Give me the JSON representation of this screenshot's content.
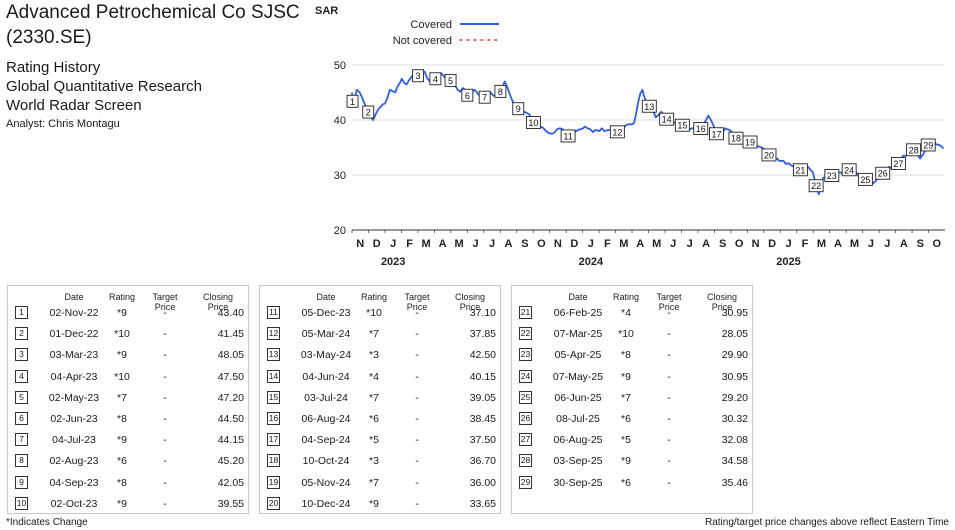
{
  "header": {
    "title_line1": "Advanced Petrochemical Co SJSC",
    "title_line2": "(2330.SE)",
    "sub1": "Rating History",
    "sub2": "Global Quantitative Research",
    "sub3": "World Radar Screen",
    "analyst": "Analyst: Chris Montagu"
  },
  "chart_data": {
    "type": "line",
    "ylabel": "SAR",
    "ylim": [
      20,
      52
    ],
    "yticks": [
      20,
      30,
      40,
      50
    ],
    "x_start": "2022-11-01",
    "x_end": "2025-10-31",
    "month_labels": [
      "N",
      "D",
      "J",
      "F",
      "M",
      "A",
      "M",
      "J",
      "J",
      "A",
      "S",
      "O",
      "N",
      "D",
      "J",
      "F",
      "M",
      "A",
      "M",
      "J",
      "J",
      "A",
      "S",
      "O",
      "N",
      "D",
      "J",
      "F",
      "M",
      "A",
      "M",
      "J",
      "J",
      "A",
      "S",
      "O"
    ],
    "year_labels": [
      "2023",
      "2024",
      "2025"
    ],
    "legend": [
      {
        "label": "Covered",
        "style": "solid",
        "color": "#2f5fe0"
      },
      {
        "label": "Not covered",
        "style": "dotted",
        "color": "#e03030"
      }
    ],
    "series": [
      {
        "name": "Covered",
        "color": "#2f5fe0",
        "points": [
          [
            "2022-11-01",
            45.0
          ],
          [
            "2022-11-02",
            43.4
          ],
          [
            "2022-11-10",
            45.5
          ],
          [
            "2022-11-20",
            44.0
          ],
          [
            "2022-12-01",
            41.45
          ],
          [
            "2022-12-10",
            40.0
          ],
          [
            "2022-12-20",
            42.0
          ],
          [
            "2023-01-01",
            43.0
          ],
          [
            "2023-01-10",
            45.5
          ],
          [
            "2023-01-20",
            45.0
          ],
          [
            "2023-02-01",
            47.5
          ],
          [
            "2023-02-10",
            46.5
          ],
          [
            "2023-02-20",
            48.0
          ],
          [
            "2023-03-03",
            48.05
          ],
          [
            "2023-03-15",
            48.8
          ],
          [
            "2023-03-25",
            47.0
          ],
          [
            "2023-04-04",
            47.5
          ],
          [
            "2023-04-15",
            48.5
          ],
          [
            "2023-04-25",
            47.2
          ],
          [
            "2023-05-02",
            47.2
          ],
          [
            "2023-05-15",
            45.5
          ],
          [
            "2023-05-25",
            45.8
          ],
          [
            "2023-06-02",
            44.5
          ],
          [
            "2023-06-15",
            45.5
          ],
          [
            "2023-06-25",
            44.3
          ],
          [
            "2023-07-04",
            44.15
          ],
          [
            "2023-07-15",
            45.0
          ],
          [
            "2023-07-25",
            44.5
          ],
          [
            "2023-08-02",
            45.2
          ],
          [
            "2023-08-10",
            47.0
          ],
          [
            "2023-08-20",
            44.5
          ],
          [
            "2023-09-04",
            42.05
          ],
          [
            "2023-09-15",
            41.5
          ],
          [
            "2023-09-25",
            41.0
          ],
          [
            "2023-10-02",
            39.55
          ],
          [
            "2023-10-15",
            38.8
          ],
          [
            "2023-10-25",
            38.0
          ],
          [
            "2023-11-05",
            37.5
          ],
          [
            "2023-11-20",
            38.5
          ],
          [
            "2023-12-05",
            37.1
          ],
          [
            "2023-12-20",
            38.0
          ],
          [
            "2024-01-05",
            38.8
          ],
          [
            "2024-01-20",
            37.8
          ],
          [
            "2024-02-05",
            38.5
          ],
          [
            "2024-02-20",
            38.2
          ],
          [
            "2024-03-05",
            37.85
          ],
          [
            "2024-03-20",
            39.0
          ],
          [
            "2024-04-05",
            39.5
          ],
          [
            "2024-04-12",
            43.0
          ],
          [
            "2024-04-20",
            45.5
          ],
          [
            "2024-05-03",
            42.5
          ],
          [
            "2024-05-15",
            40.5
          ],
          [
            "2024-05-25",
            41.5
          ],
          [
            "2024-06-04",
            40.15
          ],
          [
            "2024-06-20",
            39.5
          ],
          [
            "2024-07-03",
            39.05
          ],
          [
            "2024-07-20",
            38.5
          ],
          [
            "2024-08-06",
            38.45
          ],
          [
            "2024-08-20",
            40.8
          ],
          [
            "2024-09-04",
            37.5
          ],
          [
            "2024-09-20",
            38.5
          ],
          [
            "2024-10-10",
            36.7
          ],
          [
            "2024-10-25",
            37.0
          ],
          [
            "2024-11-05",
            36.0
          ],
          [
            "2024-11-20",
            35.2
          ],
          [
            "2024-12-10",
            33.65
          ],
          [
            "2024-12-25",
            33.0
          ],
          [
            "2025-01-10",
            32.0
          ],
          [
            "2025-01-25",
            31.5
          ],
          [
            "2025-02-06",
            30.95
          ],
          [
            "2025-02-20",
            31.5
          ],
          [
            "2025-03-01",
            30.5
          ],
          [
            "2025-03-07",
            28.05
          ],
          [
            "2025-03-12",
            26.5
          ],
          [
            "2025-03-20",
            29.5
          ],
          [
            "2025-04-05",
            29.9
          ],
          [
            "2025-04-20",
            30.5
          ],
          [
            "2025-05-07",
            30.95
          ],
          [
            "2025-05-20",
            30.5
          ],
          [
            "2025-06-06",
            29.2
          ],
          [
            "2025-06-20",
            28.5
          ],
          [
            "2025-07-08",
            30.32
          ],
          [
            "2025-07-20",
            31.5
          ],
          [
            "2025-08-06",
            32.08
          ],
          [
            "2025-08-20",
            33.5
          ],
          [
            "2025-09-03",
            34.58
          ],
          [
            "2025-09-15",
            33.0
          ],
          [
            "2025-09-30",
            35.46
          ],
          [
            "2025-10-10",
            36.2
          ],
          [
            "2025-10-20",
            35.5
          ],
          [
            "2025-10-28",
            34.8
          ]
        ]
      }
    ],
    "markers": [
      {
        "n": "1",
        "date": "2022-11-02",
        "price": 43.4
      },
      {
        "n": "2",
        "date": "2022-12-01",
        "price": 41.45
      },
      {
        "n": "3",
        "date": "2023-03-03",
        "price": 48.05
      },
      {
        "n": "4",
        "date": "2023-04-04",
        "price": 47.5
      },
      {
        "n": "5",
        "date": "2023-05-02",
        "price": 47.2
      },
      {
        "n": "6",
        "date": "2023-06-02",
        "price": 44.5
      },
      {
        "n": "7",
        "date": "2023-07-04",
        "price": 44.15
      },
      {
        "n": "8",
        "date": "2023-08-02",
        "price": 45.2
      },
      {
        "n": "9",
        "date": "2023-09-04",
        "price": 42.05
      },
      {
        "n": "10",
        "date": "2023-10-02",
        "price": 39.55
      },
      {
        "n": "11",
        "date": "2023-12-05",
        "price": 37.1
      },
      {
        "n": "12",
        "date": "2024-03-05",
        "price": 37.85
      },
      {
        "n": "13",
        "date": "2024-05-03",
        "price": 42.5
      },
      {
        "n": "14",
        "date": "2024-06-04",
        "price": 40.15
      },
      {
        "n": "15",
        "date": "2024-07-03",
        "price": 39.05
      },
      {
        "n": "16",
        "date": "2024-08-06",
        "price": 38.45
      },
      {
        "n": "17",
        "date": "2024-09-04",
        "price": 37.5
      },
      {
        "n": "18",
        "date": "2024-10-10",
        "price": 36.7
      },
      {
        "n": "19",
        "date": "2024-11-05",
        "price": 36.0
      },
      {
        "n": "20",
        "date": "2024-12-10",
        "price": 33.65
      },
      {
        "n": "21",
        "date": "2025-02-06",
        "price": 30.95
      },
      {
        "n": "22",
        "date": "2025-03-07",
        "price": 28.05
      },
      {
        "n": "23",
        "date": "2025-04-05",
        "price": 29.9
      },
      {
        "n": "24",
        "date": "2025-05-07",
        "price": 30.95
      },
      {
        "n": "25",
        "date": "2025-06-06",
        "price": 29.2
      },
      {
        "n": "26",
        "date": "2025-07-08",
        "price": 30.32
      },
      {
        "n": "27",
        "date": "2025-08-06",
        "price": 32.08
      },
      {
        "n": "28",
        "date": "2025-09-03",
        "price": 34.58
      },
      {
        "n": "29",
        "date": "2025-09-30",
        "price": 35.46
      }
    ]
  },
  "table": {
    "headers": {
      "date": "Date",
      "rating": "Rating",
      "target": "Target Price",
      "close": "Closing Price"
    },
    "groups": [
      [
        {
          "n": "1",
          "date": "02-Nov-22",
          "rating": "*9",
          "target": "-",
          "close": "43.40"
        },
        {
          "n": "2",
          "date": "01-Dec-22",
          "rating": "*10",
          "target": "-",
          "close": "41.45"
        },
        {
          "n": "3",
          "date": "03-Mar-23",
          "rating": "*9",
          "target": "-",
          "close": "48.05"
        },
        {
          "n": "4",
          "date": "04-Apr-23",
          "rating": "*10",
          "target": "-",
          "close": "47.50"
        },
        {
          "n": "5",
          "date": "02-May-23",
          "rating": "*7",
          "target": "-",
          "close": "47.20"
        },
        {
          "n": "6",
          "date": "02-Jun-23",
          "rating": "*8",
          "target": "-",
          "close": "44.50"
        },
        {
          "n": "7",
          "date": "04-Jul-23",
          "rating": "*9",
          "target": "-",
          "close": "44.15"
        },
        {
          "n": "8",
          "date": "02-Aug-23",
          "rating": "*6",
          "target": "-",
          "close": "45.20"
        },
        {
          "n": "9",
          "date": "04-Sep-23",
          "rating": "*8",
          "target": "-",
          "close": "42.05"
        },
        {
          "n": "10",
          "date": "02-Oct-23",
          "rating": "*9",
          "target": "-",
          "close": "39.55"
        }
      ],
      [
        {
          "n": "11",
          "date": "05-Dec-23",
          "rating": "*10",
          "target": "-",
          "close": "37.10"
        },
        {
          "n": "12",
          "date": "05-Mar-24",
          "rating": "*7",
          "target": "-",
          "close": "37.85"
        },
        {
          "n": "13",
          "date": "03-May-24",
          "rating": "*3",
          "target": "-",
          "close": "42.50"
        },
        {
          "n": "14",
          "date": "04-Jun-24",
          "rating": "*4",
          "target": "-",
          "close": "40.15"
        },
        {
          "n": "15",
          "date": "03-Jul-24",
          "rating": "*7",
          "target": "-",
          "close": "39.05"
        },
        {
          "n": "16",
          "date": "06-Aug-24",
          "rating": "*6",
          "target": "-",
          "close": "38.45"
        },
        {
          "n": "17",
          "date": "04-Sep-24",
          "rating": "*5",
          "target": "-",
          "close": "37.50"
        },
        {
          "n": "18",
          "date": "10-Oct-24",
          "rating": "*3",
          "target": "-",
          "close": "36.70"
        },
        {
          "n": "19",
          "date": "05-Nov-24",
          "rating": "*7",
          "target": "-",
          "close": "36.00"
        },
        {
          "n": "20",
          "date": "10-Dec-24",
          "rating": "*9",
          "target": "-",
          "close": "33.65"
        }
      ],
      [
        {
          "n": "21",
          "date": "06-Feb-25",
          "rating": "*4",
          "target": "-",
          "close": "30.95"
        },
        {
          "n": "22",
          "date": "07-Mar-25",
          "rating": "*10",
          "target": "-",
          "close": "28.05"
        },
        {
          "n": "23",
          "date": "05-Apr-25",
          "rating": "*8",
          "target": "-",
          "close": "29.90"
        },
        {
          "n": "24",
          "date": "07-May-25",
          "rating": "*9",
          "target": "-",
          "close": "30.95"
        },
        {
          "n": "25",
          "date": "06-Jun-25",
          "rating": "*7",
          "target": "-",
          "close": "29.20"
        },
        {
          "n": "26",
          "date": "08-Jul-25",
          "rating": "*6",
          "target": "-",
          "close": "30.32"
        },
        {
          "n": "27",
          "date": "06-Aug-25",
          "rating": "*5",
          "target": "-",
          "close": "32.08"
        },
        {
          "n": "28",
          "date": "03-Sep-25",
          "rating": "*9",
          "target": "-",
          "close": "34.58"
        },
        {
          "n": "29",
          "date": "30-Sep-25",
          "rating": "*6",
          "target": "-",
          "close": "35.46"
        }
      ]
    ]
  },
  "footer": {
    "left": "*Indicates Change",
    "right": "Rating/target price changes above reflect Eastern Time"
  }
}
